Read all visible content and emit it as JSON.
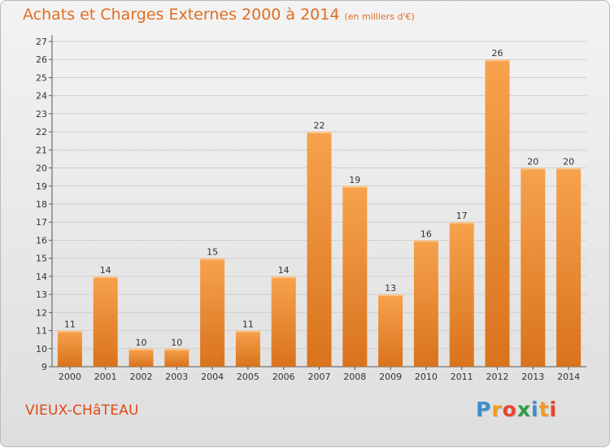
{
  "header": {
    "title": "Achats et Charges Externes 2000 à 2014",
    "subtitle": "(en milliers d'€)"
  },
  "footer": {
    "place": "VIEUX-CHâTEAU",
    "logo_letters": [
      {
        "ch": "P",
        "color": "#3a8fd0"
      },
      {
        "ch": "r",
        "color": "#f29a1f"
      },
      {
        "ch": "o",
        "color": "#e8442c"
      },
      {
        "ch": "x",
        "color": "#2f9e44"
      },
      {
        "ch": "i",
        "color": "#3a8fd0"
      },
      {
        "ch": "t",
        "color": "#f29a1f"
      },
      {
        "ch": "i",
        "color": "#e8442c"
      }
    ]
  },
  "colors": {
    "bar_top": "#f7a24e",
    "bar_bottom": "#d9731c",
    "title": "#e06d1f",
    "grid": "#cfcfcf"
  },
  "chart_data": {
    "type": "bar",
    "title": "Achats et Charges Externes 2000 à 2014",
    "subtitle": "(en milliers d'€)",
    "categories": [
      "2000",
      "2001",
      "2002",
      "2003",
      "2004",
      "2005",
      "2006",
      "2007",
      "2008",
      "2009",
      "2010",
      "2011",
      "2012",
      "2013",
      "2014"
    ],
    "values": [
      11,
      14,
      10,
      10,
      15,
      11,
      14,
      22,
      19,
      13,
      16,
      17,
      26,
      20,
      20
    ],
    "ylim": [
      9,
      27
    ],
    "yticks": [
      9,
      10,
      11,
      12,
      13,
      14,
      15,
      16,
      17,
      18,
      19,
      20,
      21,
      22,
      23,
      24,
      25,
      26,
      27
    ],
    "grid": true,
    "xlabel": "",
    "ylabel": ""
  }
}
